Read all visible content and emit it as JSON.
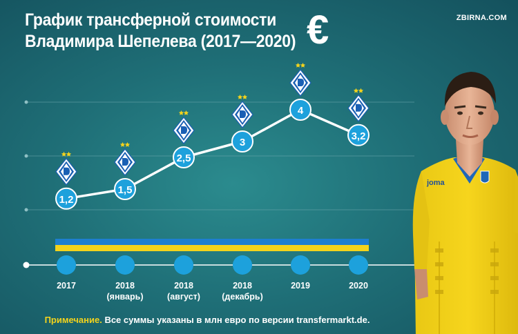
{
  "title": {
    "line1": "График трансферной стоимости",
    "line2": "Владимира Шепелева (2017—2020)"
  },
  "brand": "ZBIRNA.COM",
  "currency_symbol": "€",
  "note": {
    "label": "Примечание.",
    "text": " Все суммы указаны в млн евро по версии transfermarkt.de."
  },
  "colors": {
    "background": "#1f6f77",
    "marker": "#1da1dc",
    "line": "#ffffff",
    "flag_blue": "#1e7fd0",
    "flag_yellow": "#f4d31c",
    "stars": "#f4d31c"
  },
  "chart_data": {
    "type": "line",
    "categories": [
      "2017",
      "2018 (январь)",
      "2018 (август)",
      "2018 (декабрь)",
      "2019",
      "2020"
    ],
    "category_labels": [
      [
        "2017"
      ],
      [
        "2018",
        "(январь)"
      ],
      [
        "2018",
        "(август)"
      ],
      [
        "2018",
        "(декабрь)"
      ],
      [
        "2019"
      ],
      [
        "2020"
      ]
    ],
    "values": [
      1.2,
      1.5,
      2.5,
      3,
      4,
      3.2
    ],
    "value_labels": [
      "1,2",
      "1,5",
      "2,5",
      "3",
      "4",
      "3,2"
    ],
    "unit": "млн евро",
    "club_icon": "dynamo-kyiv-logo",
    "ylim": [
      0.8,
      4.5
    ],
    "grid": true
  }
}
